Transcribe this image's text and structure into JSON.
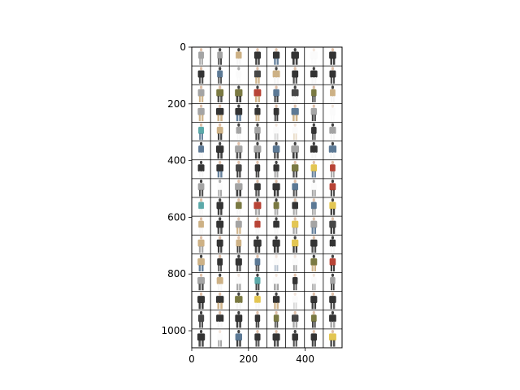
{
  "figure": {
    "background": "#ffffff",
    "image_description_tags": [
      "fashion-model-thumbnail-grid"
    ]
  },
  "axes": {
    "x_ticks": [
      {
        "value": 0,
        "label": "0"
      },
      {
        "value": 200,
        "label": "200"
      },
      {
        "value": 400,
        "label": "400"
      }
    ],
    "y_ticks": [
      {
        "value": 0,
        "label": "0"
      },
      {
        "value": 200,
        "label": "200"
      },
      {
        "value": 400,
        "label": "400"
      },
      {
        "value": 600,
        "label": "600"
      },
      {
        "value": 800,
        "label": "800"
      },
      {
        "value": 1000,
        "label": "1000"
      }
    ],
    "xlim": [
      0,
      530
    ],
    "ylim": [
      1060,
      0
    ]
  },
  "grid_image": {
    "columns": 8,
    "rows": 16,
    "separator_color": "#000000",
    "cell_background": "#ffffff"
  },
  "chart_data": {
    "type": "heatmap",
    "title": "",
    "xlabel": "",
    "ylabel": "",
    "xlim": [
      0,
      530
    ],
    "ylim": [
      1060,
      0
    ],
    "grid": false,
    "image_grid": {
      "columns": 8,
      "rows": 16
    }
  },
  "palette": {
    "dark": "#1e1e1e",
    "charcoal": "#333333",
    "white": "#f4f4f4",
    "grey": "#9a9a9a",
    "olive": "#6b6a2e",
    "denim": "#4a6a8a",
    "tan": "#c8a878",
    "skin": "#d9b59a",
    "yellow": "#e0c040",
    "red": "#b03020",
    "teal": "#4aa0a0"
  }
}
